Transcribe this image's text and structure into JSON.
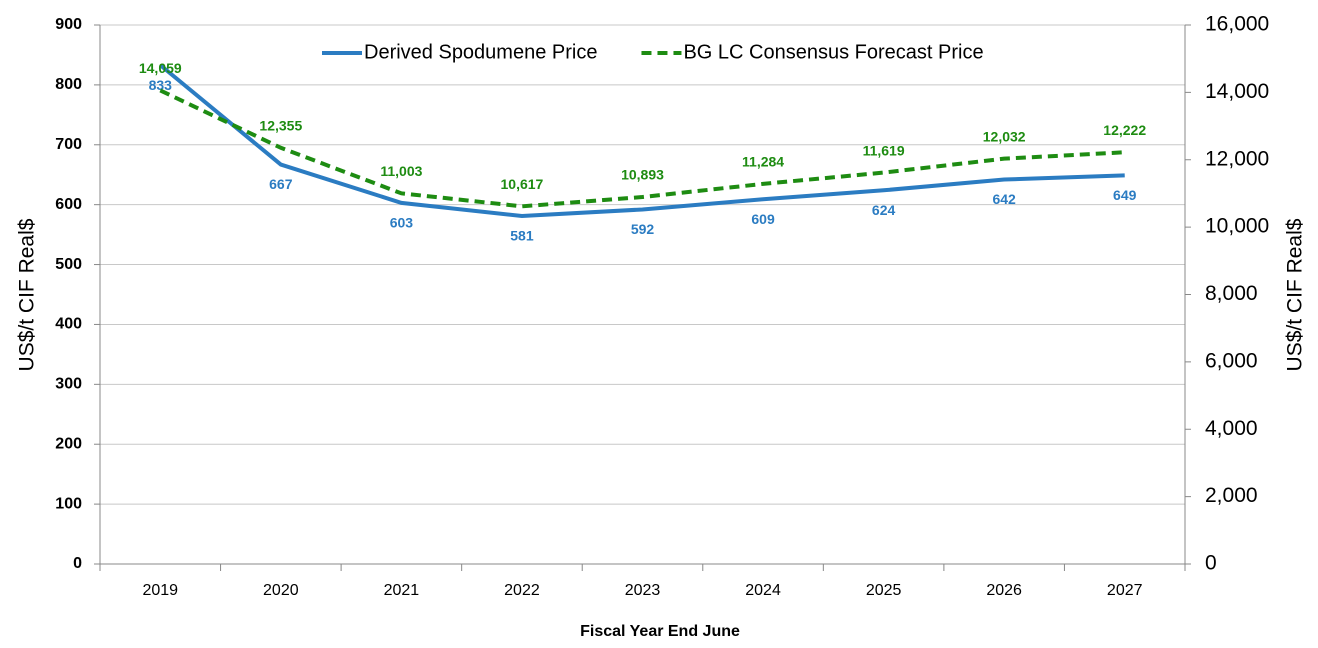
{
  "chart_data": {
    "type": "line",
    "xlabel": "Fiscal Year End June",
    "ylabel": "US$/t CIF  Real$",
    "y2label": "US$/t CIF  Real$",
    "categories": [
      "2019",
      "2020",
      "2021",
      "2022",
      "2023",
      "2024",
      "2025",
      "2026",
      "2027"
    ],
    "series": [
      {
        "name": "Derived Spodumene Price",
        "color": "#2b7cc2",
        "dash": false,
        "values": [
          833,
          667,
          603,
          581,
          592,
          609,
          624,
          642,
          649
        ]
      },
      {
        "name": "BG LC Consensus Forecast Price",
        "color": "#1e8c12",
        "dash": true,
        "axis": "y2",
        "values": [
          14059,
          12355,
          11003,
          10617,
          10893,
          11284,
          11619,
          12032,
          12222
        ],
        "value_labels": [
          "14,059",
          "12,355",
          "11,003",
          "10,617",
          "10,893",
          "11,284",
          "11,619",
          "12,032",
          "12,222"
        ]
      }
    ],
    "ylim": [
      0,
      900
    ],
    "yticks": [
      0,
      100,
      200,
      300,
      400,
      500,
      600,
      700,
      800,
      900
    ],
    "y2lim": [
      0,
      16000
    ],
    "y2ticks": [
      0,
      {
        "value": 2000,
        "label": "2,000"
      },
      {
        "value": 4000,
        "label": "4,000"
      },
      {
        "value": 6000,
        "label": "6,000"
      },
      {
        "value": 8000,
        "label": "8,000"
      },
      {
        "value": 10000,
        "label": "10,000"
      },
      {
        "value": 12000,
        "label": "12,000"
      },
      {
        "value": 14000,
        "label": "14,000"
      },
      {
        "value": 16000,
        "label": "16,000"
      }
    ],
    "grid": true,
    "legend": "top"
  }
}
